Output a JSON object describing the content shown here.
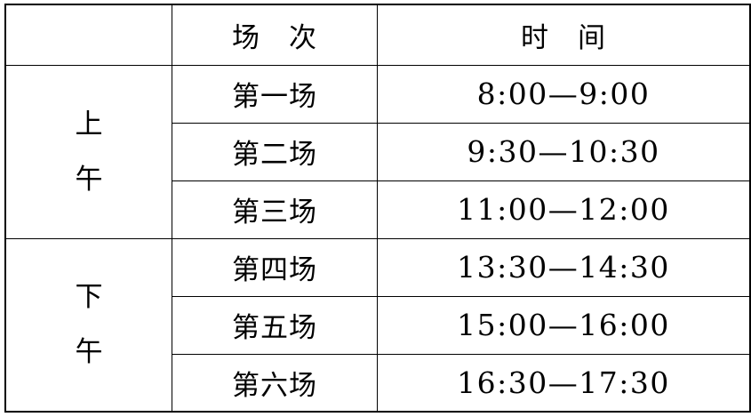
{
  "table": {
    "header": {
      "session_label": "场　次",
      "time_label": "时　间"
    },
    "groups": [
      {
        "period_name": "morning",
        "period": [
          "上",
          "午"
        ],
        "rows": [
          {
            "session": "第一场",
            "time": "8:00—9:00"
          },
          {
            "session": "第二场",
            "time": "9:30—10:30"
          },
          {
            "session": "第三场",
            "time": "11:00—12:00"
          }
        ]
      },
      {
        "period_name": "afternoon",
        "period": [
          "下",
          "午"
        ],
        "rows": [
          {
            "session": "第四场",
            "time": "13:30—14:30"
          },
          {
            "session": "第五场",
            "time": "15:00—16:00"
          },
          {
            "session": "第六场",
            "time": "16:30—17:30"
          }
        ]
      }
    ],
    "colors": {
      "border": "#000000",
      "text": "#000000",
      "background": "#ffffff"
    }
  }
}
